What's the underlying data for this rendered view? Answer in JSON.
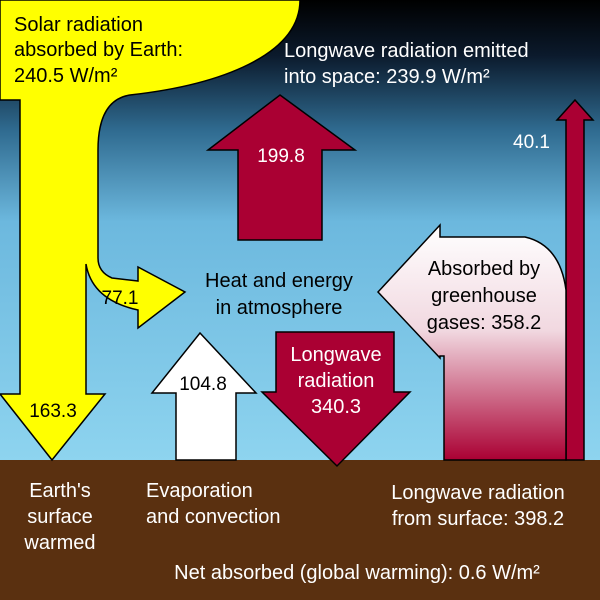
{
  "solar": {
    "line1": "Solar radiation",
    "line2": "absorbed by Earth:",
    "line3": "240.5 W/m²"
  },
  "space": {
    "line1": "Longwave radiation emitted",
    "line2": "into space: 239.9 W/m²"
  },
  "atmosphere": {
    "line1": "Heat and energy",
    "line2": "in atmosphere"
  },
  "arrows": {
    "atm_to_space": "199.8",
    "solar_to_atm": "77.1",
    "evap_up": "104.8",
    "surface_to_space": "40.1",
    "solar_to_surface": "163.3",
    "back_radiation": {
      "line1": "Longwave",
      "line2": "radiation",
      "line3": "340.3"
    },
    "greenhouse": {
      "line1": "Absorbed by",
      "line2": "greenhouse",
      "line3": "gases: 358.2"
    }
  },
  "surface": {
    "earth_line1": "Earth's",
    "earth_line2": "surface",
    "earth_line3": "warmed",
    "evap_line1": "Evaporation",
    "evap_line2": "and convection",
    "lw_line1": "Longwave radiation",
    "lw_line2": "from surface: 398.2",
    "net": "Net absorbed (global warming): 0.6 W/m²"
  },
  "colors": {
    "solar_yellow": "#ffff00",
    "longwave_red": "#aa0033",
    "ground_brown": "#5a3010",
    "sky_top": "#000000",
    "sky_bottom": "#87ceeb"
  }
}
